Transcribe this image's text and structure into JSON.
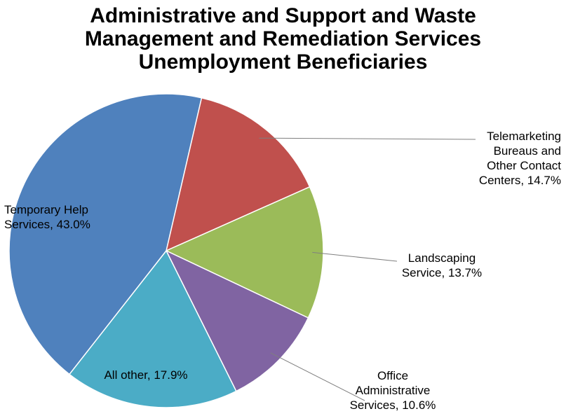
{
  "chart_data": {
    "type": "pie",
    "title_lines": [
      "Administrative and Support and Waste",
      "Management and Remediation Services",
      "Unemployment Beneficiaries"
    ],
    "start_angle_deg": 77,
    "direction": "clockwise",
    "slices": [
      {
        "label": "Telemarketing Bureaus and Other Contact Centers",
        "value": 14.7,
        "label_text": "Telemarketing Bureaus and Other Contact Centers, 14.7%",
        "label_lines": [
          "Telemarketing",
          "Bureaus and",
          "Other Contact",
          "Centers, 14.7%"
        ],
        "color": "#c0504d",
        "label_position": "outside-right",
        "leader_line": true
      },
      {
        "label": "Landscaping Service",
        "value": 13.7,
        "label_text": "Landscaping Service, 13.7%",
        "label_lines": [
          "Landscaping",
          "Service, 13.7%"
        ],
        "color": "#9bbb59",
        "label_position": "outside-right",
        "leader_line": true
      },
      {
        "label": "Office Administrative Services",
        "value": 10.6,
        "label_text": "Office Administrative Services, 10.6%",
        "label_lines": [
          "Office",
          "Administrative",
          "Services, 10.6%"
        ],
        "color": "#8064a2",
        "label_position": "outside-bottom-right",
        "leader_line": true
      },
      {
        "label": "All other",
        "value": 17.9,
        "label_text": "All other, 17.9%",
        "label_lines": [
          "All other, 17.9%"
        ],
        "color": "#4bacc6",
        "label_position": "inside",
        "leader_line": false
      },
      {
        "label": "Temporary Help Services",
        "value": 43.0,
        "label_text": "Temporary Help Services, 43.0%",
        "label_lines": [
          "Temporary Help",
          "Services, 43.0%"
        ],
        "color": "#4f81bd",
        "label_position": "inside",
        "leader_line": false
      }
    ]
  }
}
